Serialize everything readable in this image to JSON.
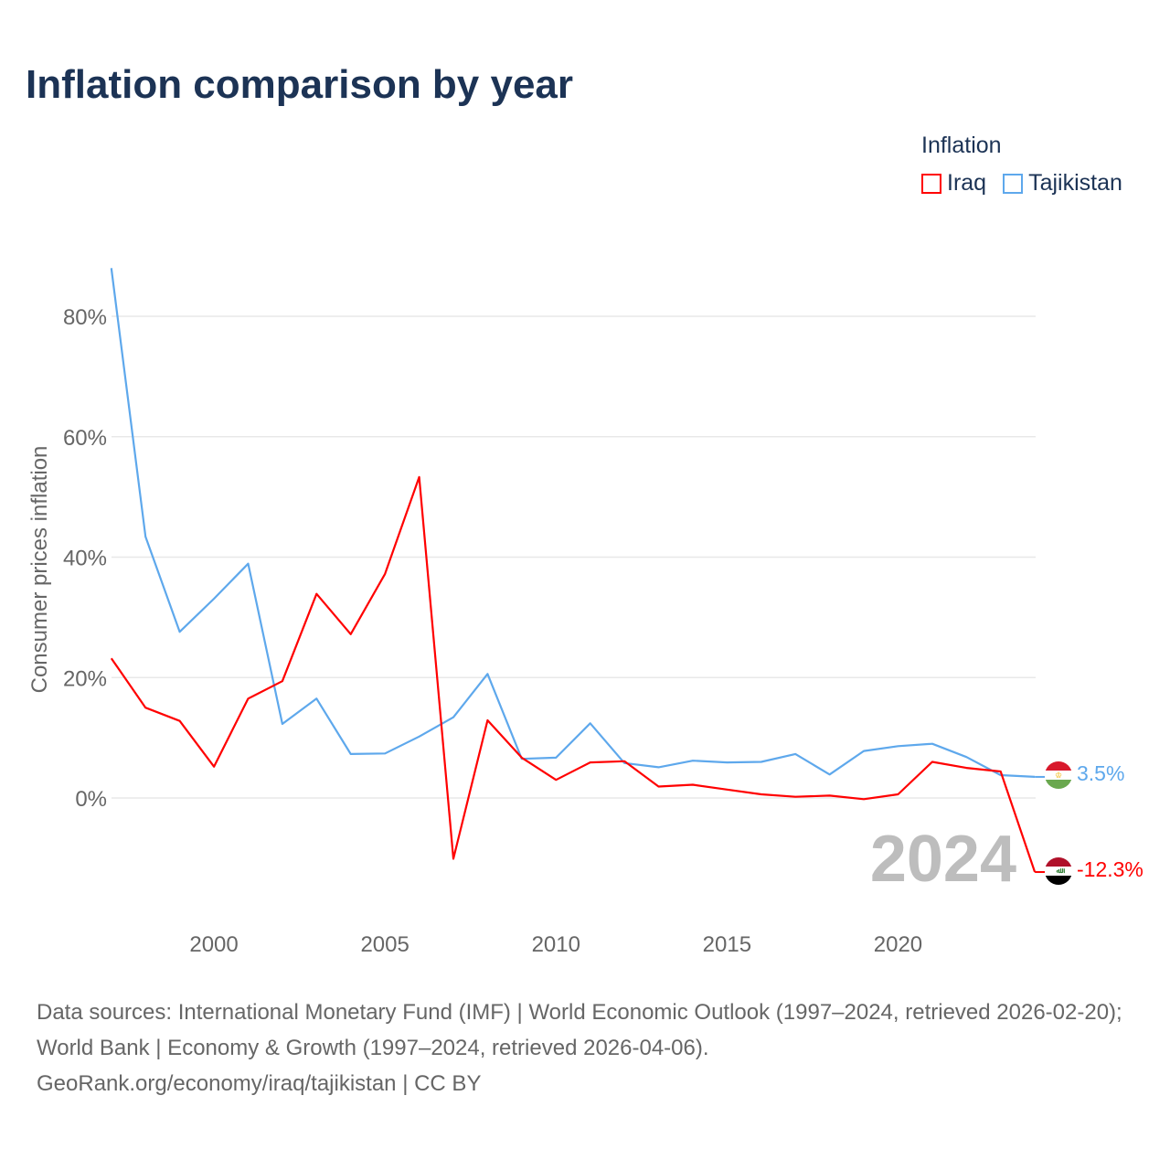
{
  "title": "Inflation comparison by year",
  "legend": {
    "title": "Inflation",
    "items": [
      {
        "label": "Iraq",
        "color": "#ff0000"
      },
      {
        "label": "Tajikistan",
        "color": "#5ea8ec"
      }
    ]
  },
  "year_watermark": "2024",
  "end_labels": {
    "tajikistan": "3.5%",
    "iraq": "-12.3%"
  },
  "footer": {
    "line1": "Data sources: International Monetary Fund (IMF) | World Economic Outlook (1997–2024, retrieved 2026-02-20); World Bank | Economy & Growth (1997–2024, retrieved 2026-04-06).",
    "line2": "GeoRank.org/economy/iraq/tajikistan | CC BY"
  },
  "chart_data": {
    "type": "line",
    "title": "Inflation comparison by year",
    "xlabel": "",
    "ylabel": "Consumer prices inflation",
    "xlim": [
      1997,
      2024
    ],
    "ylim": [
      -15,
      90
    ],
    "x_ticks": [
      2000,
      2005,
      2010,
      2015,
      2020
    ],
    "y_ticks": [
      {
        "value": 0,
        "label": "0%"
      },
      {
        "value": 20,
        "label": "20%"
      },
      {
        "value": 40,
        "label": "40%"
      },
      {
        "value": 60,
        "label": "60%"
      },
      {
        "value": 80,
        "label": "80%"
      }
    ],
    "grid": true,
    "legend_position": "top-right",
    "x": [
      1997,
      1998,
      1999,
      2000,
      2001,
      2002,
      2003,
      2004,
      2005,
      2006,
      2007,
      2008,
      2009,
      2010,
      2011,
      2012,
      2013,
      2014,
      2015,
      2016,
      2017,
      2018,
      2019,
      2020,
      2021,
      2022,
      2023,
      2024
    ],
    "series": [
      {
        "name": "Iraq",
        "color": "#ff0000",
        "values": [
          23.2,
          15.0,
          12.8,
          5.2,
          16.5,
          19.4,
          33.9,
          27.2,
          37.2,
          53.3,
          -10.1,
          12.9,
          6.7,
          3.0,
          5.9,
          6.1,
          1.9,
          2.2,
          1.4,
          0.6,
          0.2,
          0.4,
          -0.2,
          0.6,
          6.0,
          5.0,
          4.4,
          -12.3
        ]
      },
      {
        "name": "Tajikistan",
        "color": "#5ea8ec",
        "values": [
          88.0,
          43.4,
          27.6,
          33.1,
          38.9,
          12.3,
          16.5,
          7.3,
          7.4,
          10.2,
          13.4,
          20.6,
          6.5,
          6.7,
          12.4,
          5.8,
          5.1,
          6.2,
          5.9,
          6.0,
          7.3,
          3.9,
          7.8,
          8.6,
          9.0,
          6.8,
          3.8,
          3.5
        ]
      }
    ]
  }
}
